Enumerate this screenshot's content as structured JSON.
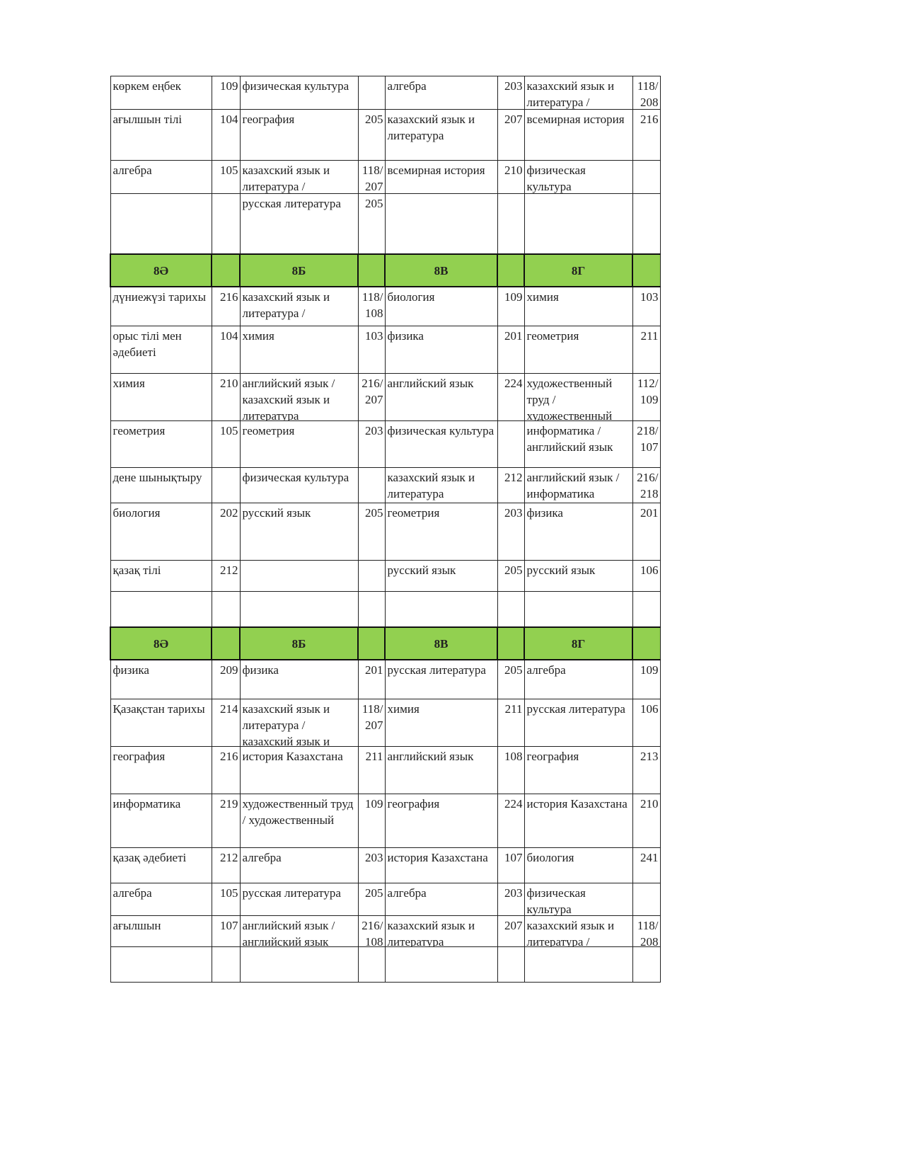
{
  "header_color": "#92d050",
  "sections": [
    {
      "header": null,
      "rows": [
        [
          "көркем еңбек",
          "109",
          "физическая культура",
          "",
          "алгебра",
          "203",
          "казахский язык и литература /",
          "118/ 208"
        ],
        [
          "ағылшын тілі",
          "104",
          "география",
          "205",
          "казахский язык и литература",
          "207",
          "всемирная история",
          "216"
        ],
        [
          "алгебра",
          "105",
          "казахский язык и литература /",
          "118/ 207",
          "всемирная история",
          "210",
          "физическая культура",
          ""
        ],
        [
          "",
          "",
          "русская литература",
          "205",
          "",
          "",
          "",
          ""
        ]
      ]
    },
    {
      "header": [
        "8Ә",
        "",
        "8Б",
        "",
        "8В",
        "",
        "8Г",
        ""
      ],
      "rows": [
        [
          "дүниежүзі тарихы",
          "216",
          "казахский язык и литература /",
          "118/ 108",
          "биология",
          "109",
          "химия",
          "103"
        ],
        [
          "орыс тілі мен әдебиеті",
          "104",
          "химия",
          "103",
          "физика",
          "201",
          "геометрия",
          "211"
        ],
        [
          "химия",
          "210",
          "английский язык / казахский язык и литература",
          "216/ 207",
          "английский язык",
          "224",
          "художественный труд / художественный",
          "112/ 109"
        ],
        [
          "геометрия",
          "105",
          "геометрия",
          "203",
          "физическая культура",
          "",
          "информатика / английский язык",
          "218/ 107"
        ],
        [
          "дене шынықтыру",
          "",
          "физическая культура",
          "",
          "казахский язык и литература",
          "212",
          "английский язык / информатика",
          "216/ 218"
        ],
        [
          "биология",
          "202",
          "русский язык",
          "205",
          "геометрия",
          "203",
          "физика",
          "201"
        ],
        [
          "қазақ тілі",
          "212",
          "",
          "",
          "русский язык",
          "205",
          "русский язык",
          "106"
        ],
        [
          "",
          "",
          "",
          "",
          "",
          "",
          "",
          ""
        ]
      ]
    },
    {
      "header": [
        "8Ә",
        "",
        "8Б",
        "",
        "8В",
        "",
        "8Г",
        ""
      ],
      "rows": [
        [
          "физика",
          "209",
          "физика",
          "201",
          "русская литература",
          "205",
          "алгебра",
          "109"
        ],
        [
          "Қазақстан тарихы",
          "214",
          "казахский язык и литература / казахский язык и",
          "118/ 207",
          "химия",
          "211",
          "русская литература",
          "106"
        ],
        [
          "география",
          "216",
          "история Казахстана",
          "211",
          "английский язык",
          "108",
          "география",
          "213"
        ],
        [
          "информатика",
          "219",
          "художественный труд / художественный",
          "109",
          "география",
          "224",
          "история Казахстана",
          "210"
        ],
        [
          "қазақ әдебиеті",
          "212",
          "алгебра",
          "203",
          "история Казахстана",
          "107",
          "биология",
          "241"
        ],
        [
          "алгебра",
          "105",
          "русская литература",
          "205",
          "алгебра",
          "203",
          "физическая культура",
          ""
        ],
        [
          "ағылшын",
          "107",
          "английский язык / английский язык",
          "216/ 108",
          "казахский язык и литература",
          "207",
          "казахский язык и литература /",
          "118/ 208"
        ],
        [
          "",
          "",
          "",
          "",
          "",
          "",
          "",
          ""
        ]
      ]
    }
  ]
}
